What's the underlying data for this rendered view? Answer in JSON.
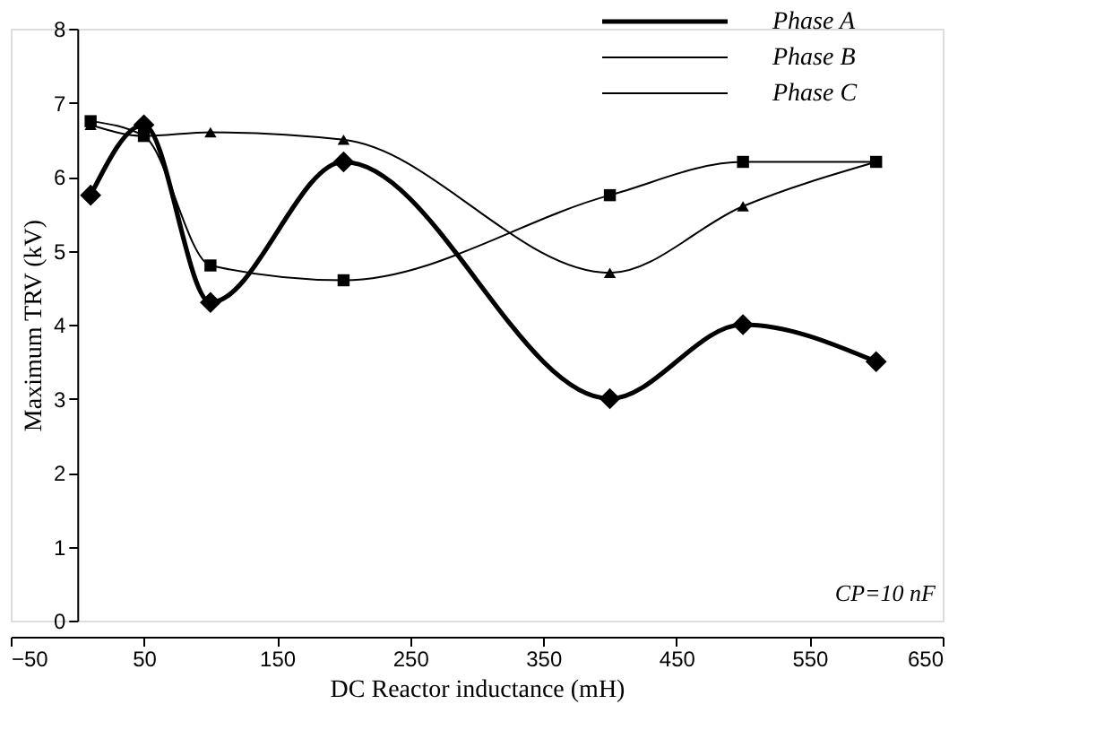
{
  "chart_data": {
    "type": "line",
    "xlabel": "DC Reactor inductance (mH)",
    "ylabel": "Maximum TRV (kV)",
    "x": [
      10,
      50,
      100,
      200,
      400,
      500,
      600
    ],
    "series": [
      {
        "name": "Phase A",
        "color": "#000000",
        "marker": "diamond",
        "values": [
          5.75,
          6.7,
          4.3,
          6.2,
          3.0,
          4.0,
          3.5
        ]
      },
      {
        "name": "Phase B",
        "color": "#000000",
        "marker": "square",
        "values": [
          6.75,
          6.55,
          4.8,
          4.6,
          5.75,
          6.2,
          6.2
        ]
      },
      {
        "name": "Phase C",
        "color": "#000000",
        "marker": "triangle",
        "values": [
          6.7,
          6.55,
          6.6,
          6.5,
          4.7,
          5.6,
          6.2
        ]
      }
    ],
    "xlim": [
      -50,
      650
    ],
    "xticks": [
      -50,
      50,
      150,
      250,
      350,
      450,
      550,
      650
    ],
    "ylim": [
      0,
      8
    ],
    "yticks": [
      0,
      1,
      2,
      3,
      4,
      5,
      6,
      7,
      8
    ],
    "grid": false,
    "legend": "top right",
    "line_style": "solid",
    "annotations": [
      "CP=10 nF"
    ]
  }
}
